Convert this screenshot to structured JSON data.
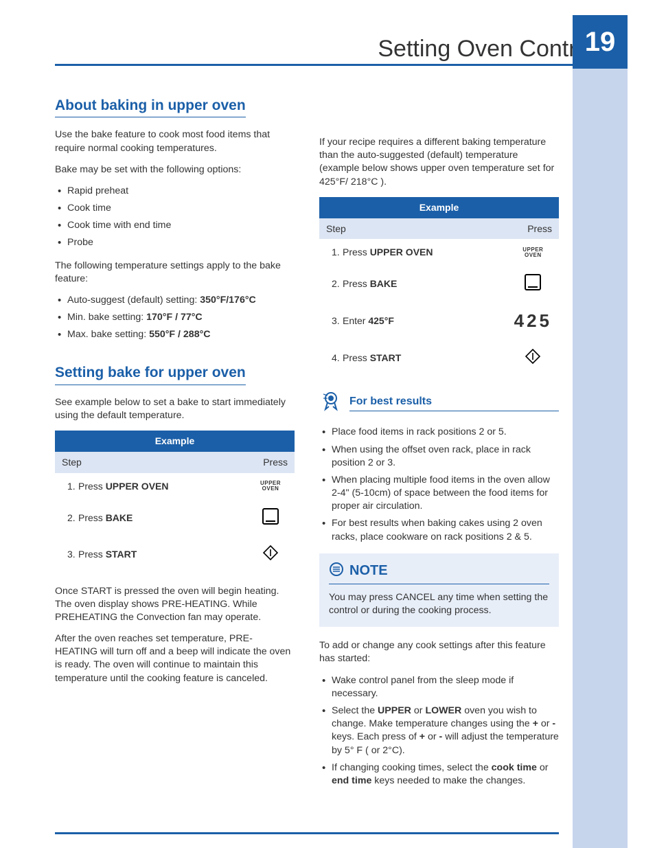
{
  "header": {
    "title": "Setting Oven Controls",
    "page_number": "19"
  },
  "colors": {
    "brand": "#1b5fa8",
    "side_strip": "#c7d5ec",
    "table_alt": "#dce5f3",
    "note_bg": "#e8eef8"
  },
  "section1": {
    "heading": "About baking in upper oven",
    "p1": "Use the bake feature to cook most food items that require normal cooking temperatures.",
    "p2": "Bake may be set with the following options:",
    "options": [
      "Rapid preheat",
      "Cook time",
      "Cook time with end time",
      "Probe"
    ],
    "p3": "The following temperature settings apply to the bake feature:",
    "temps": [
      {
        "label": "Auto-suggest (default) setting: ",
        "bold": "350°F/176°C"
      },
      {
        "label": "Min. bake setting: ",
        "bold": "170°F / 77°C"
      },
      {
        "label": "Max. bake setting: ",
        "bold": "550°F / 288°C"
      }
    ]
  },
  "section2": {
    "heading": "Setting bake for upper oven",
    "p1": "See example below to set a bake to start immediately using the default temperature.",
    "table": {
      "title": "Example",
      "col1": "Step",
      "col2": "Press",
      "rows": [
        {
          "n": "1.",
          "pre": "Press ",
          "bold": "UPPER OVEN",
          "icon": "upper-oven"
        },
        {
          "n": "2.",
          "pre": "Press ",
          "bold": "BAKE",
          "icon": "bake"
        },
        {
          "n": "3.",
          "pre": "Press ",
          "bold": "START",
          "icon": "start"
        }
      ]
    },
    "p2": "Once START is pressed the oven will begin heating. The oven display shows PRE-HEATING. While PREHEATING the Convection fan may operate.",
    "p3": "After the oven reaches set temperature, PRE-HEATING will turn off and a beep will indicate the oven is ready. The oven will continue to maintain this temperature until the cooking feature is canceled."
  },
  "rightcol": {
    "p1": "If your recipe requires a different baking temperature than the auto-suggested (default) temperature (example below shows upper oven temperature set for 425°F/ 218°C ).",
    "table": {
      "title": "Example",
      "col1": "Step",
      "col2": "Press",
      "rows": [
        {
          "n": "1.",
          "pre": "Press ",
          "bold": "UPPER OVEN",
          "icon": "upper-oven"
        },
        {
          "n": "2.",
          "pre": "Press ",
          "bold": "BAKE",
          "icon": "bake"
        },
        {
          "n": "3.",
          "pre": "Enter ",
          "bold": "425°F",
          "icon": "425"
        },
        {
          "n": "4.",
          "pre": "Press ",
          "bold": "START",
          "icon": "start"
        }
      ]
    },
    "best_heading": "For best results",
    "best_list": [
      "Place food items in rack positions 2 or 5.",
      "When using the offset oven rack, place in rack position 2 or 3.",
      "When placing multiple food items in the oven allow 2-4\" (5-10cm) of space between the food items for proper air circulation.",
      "For best results when baking cakes using 2 oven racks, place cookware on rack positions 2 & 5."
    ],
    "note_heading": "NOTE",
    "note_body": "You may press CANCEL any time when setting the control or during the cooking process.",
    "p_after_note": "To add or change any cook settings after this feature has started:",
    "after_list": [
      {
        "html": "Wake control panel from the sleep mode if necessary."
      },
      {
        "html": "Select the <b>UPPER</b> or <b>LOWER</b> oven you wish to change. Make temperature changes using the <b>+</b> or <b>-</b> keys. Each press of <b>+</b> or <b>-</b> will adjust the temperature by 5° F ( or 2°C)."
      },
      {
        "html": "If changing cooking times, select the <b>cook time</b> or <b>end time</b> keys needed to make the changes."
      }
    ]
  }
}
